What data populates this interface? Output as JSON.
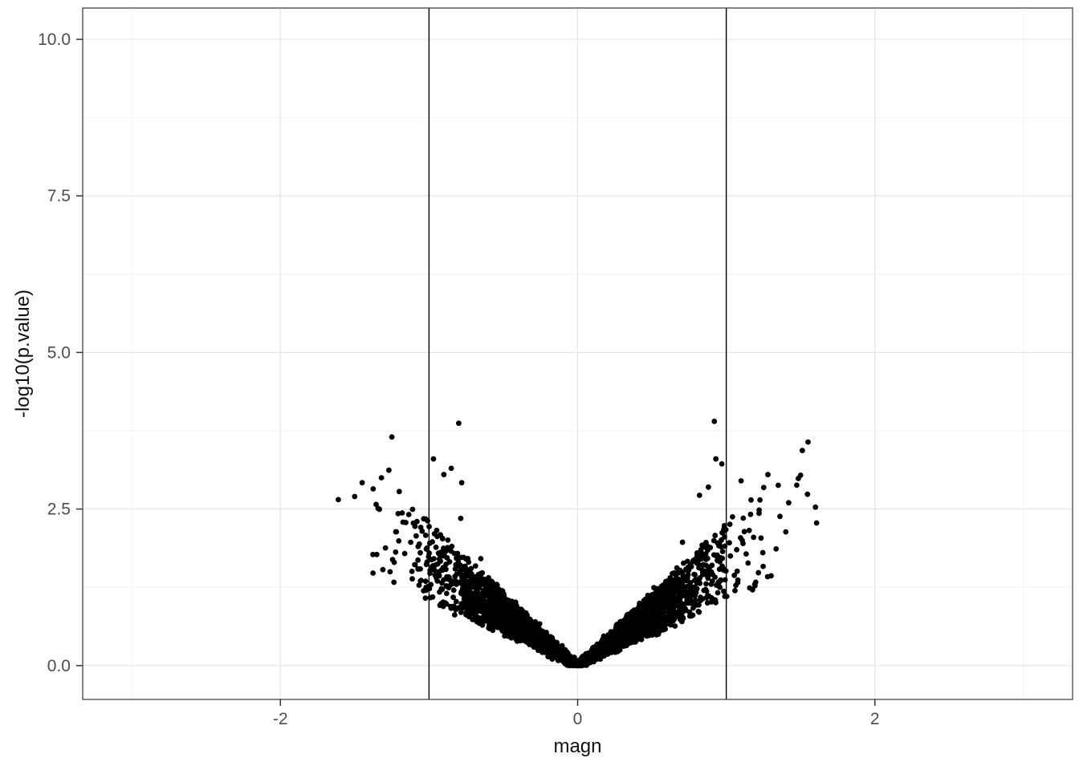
{
  "chart_data": {
    "type": "scatter",
    "title": "",
    "xlabel": "magn",
    "ylabel": "-log10(p.value)",
    "xlim": [
      -3.33,
      3.33
    ],
    "ylim": [
      -0.54,
      10.5
    ],
    "x_ticks": {
      "values": [
        -2,
        0,
        2
      ],
      "labels": [
        "-2",
        "0",
        "2"
      ]
    },
    "y_ticks": {
      "values": [
        0,
        2.5,
        5,
        7.5,
        10
      ],
      "labels": [
        "0.0",
        "2.5",
        "5.0",
        "7.5",
        "10.0"
      ]
    },
    "x_minor": [
      -3,
      -1,
      1,
      3
    ],
    "y_minor": [
      1.25,
      3.75,
      6.25,
      8.75
    ],
    "grid": "major+minor",
    "legend": "none",
    "point_color": "#000000",
    "point_radius_px": 3.4,
    "vlines": [
      {
        "x": -1
      },
      {
        "x": 1
      }
    ],
    "note": "Volcano plot: dense V-shaped cloud of ~4000 solid black points centered at (0,0), rising to ~3.9 at |magn|~1; two black vertical threshold lines at magn = -1 and +1. Exact cloud coordinates approximated procedurally from seeded generator below.",
    "cloud_generator": {
      "seed": 12,
      "n": 4200,
      "x_sigma": 0.45,
      "x_clip": 1.62,
      "slope_min": 1.05,
      "slope_range": 1.25,
      "high_tail_prob": 0.012,
      "high_tail_extra": 0.95,
      "jitter": 0.035,
      "y_cap": 3.9
    },
    "outlier_points": [
      [
        -1.61,
        2.65
      ],
      [
        -1.5,
        2.7
      ],
      [
        -1.45,
        2.92
      ],
      [
        -1.32,
        3.0
      ],
      [
        -1.27,
        3.12
      ],
      [
        -1.25,
        3.65
      ],
      [
        -1.2,
        2.78
      ],
      [
        -0.97,
        3.3
      ],
      [
        -0.9,
        3.05
      ],
      [
        -0.85,
        3.15
      ],
      [
        -0.8,
        3.87
      ],
      [
        -0.78,
        2.92
      ],
      [
        0.82,
        2.72
      ],
      [
        0.88,
        2.85
      ],
      [
        0.92,
        3.9
      ],
      [
        0.93,
        3.3
      ],
      [
        0.97,
        3.22
      ],
      [
        1.1,
        2.95
      ],
      [
        1.28,
        3.05
      ],
      [
        1.35,
        2.88
      ],
      [
        1.42,
        2.6
      ],
      [
        1.5,
        3.04
      ],
      [
        1.55,
        3.57
      ],
      [
        1.6,
        2.53
      ]
    ]
  },
  "colors": {
    "background": "#FFFFFF",
    "panel_background": "#FFFFFF",
    "panel_border": "#333333",
    "grid_major": "#E4E4E4",
    "grid_minor": "#F1F1F1",
    "tick_mark": "#333333",
    "tick_label": "#4D4D4D",
    "axis_label": "#111111",
    "vline": "#000000",
    "point": "#000000"
  }
}
